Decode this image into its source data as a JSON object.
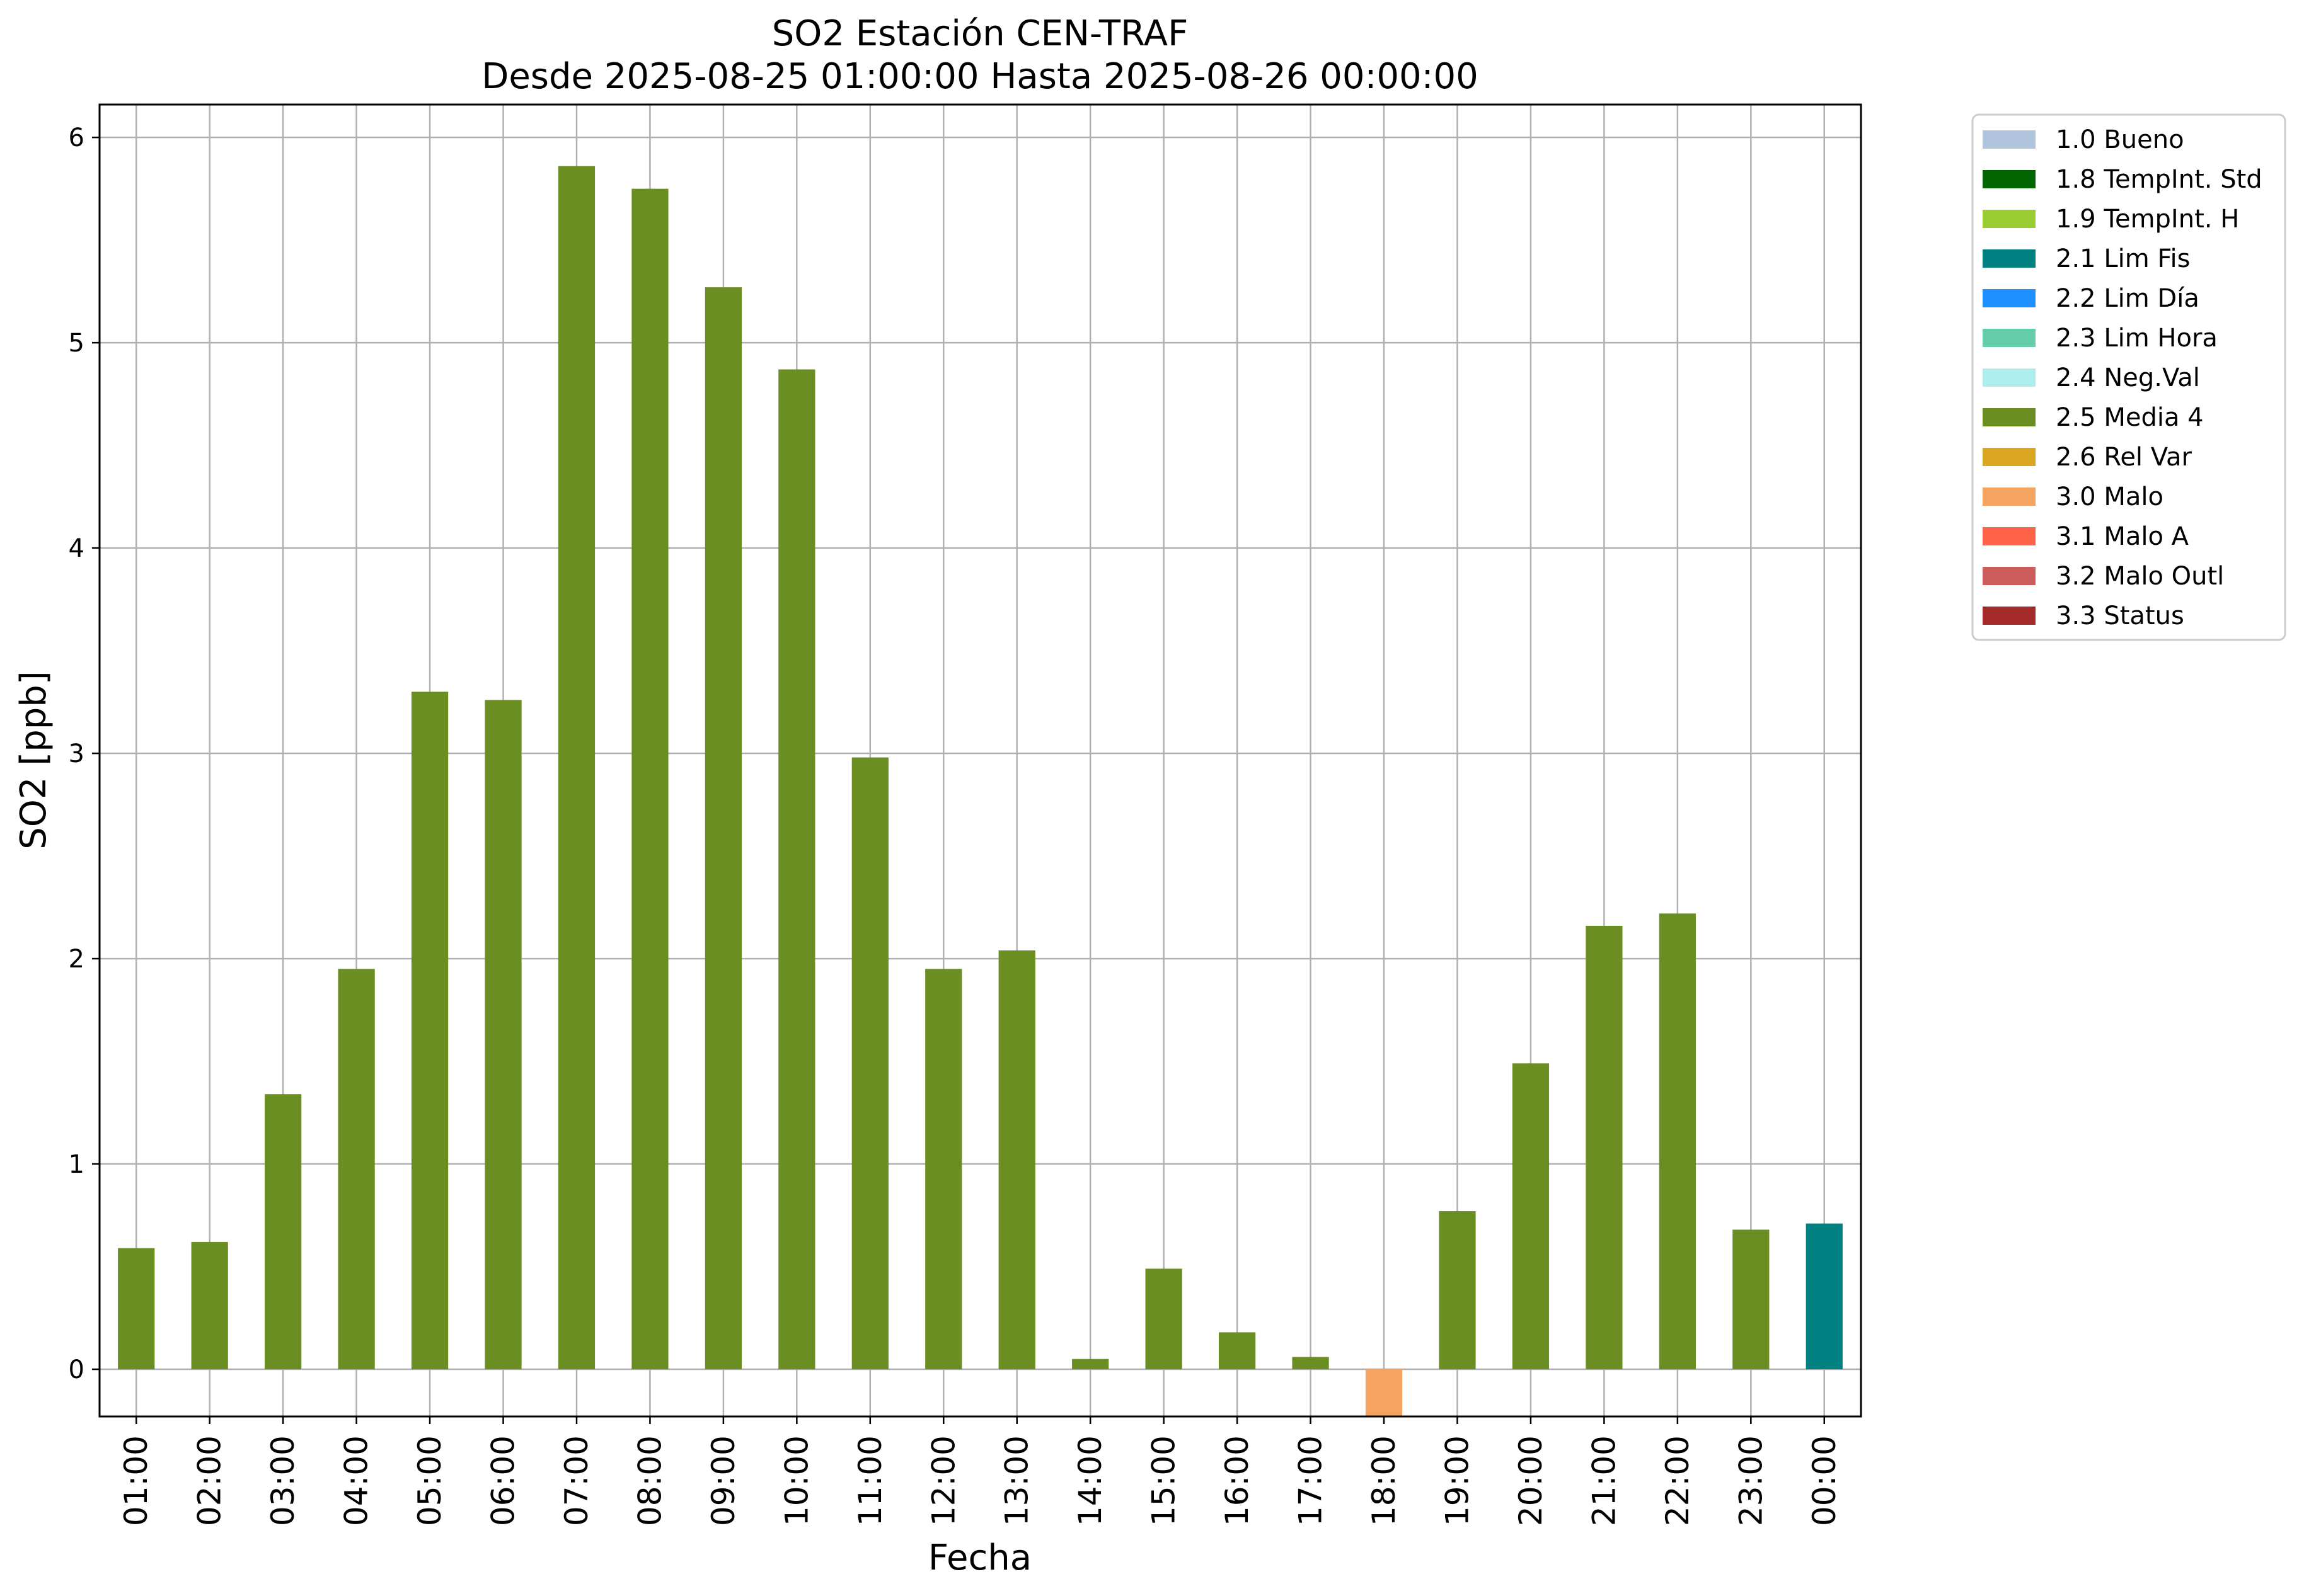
{
  "chart_data": {
    "type": "bar",
    "title": "SO2 Estación CEN-TRAF",
    "subtitle": "Desde 2025-08-25 01:00:00 Hasta 2025-08-26 00:00:00",
    "xlabel": "Fecha",
    "ylabel": "SO2 [ppb]",
    "ylim": [
      -0.23,
      6.16
    ],
    "yticks": [
      "0",
      "1",
      "2",
      "3",
      "4",
      "5",
      "6"
    ],
    "grid": true,
    "legend_position": "outside-top-right",
    "categories": [
      "01:00",
      "02:00",
      "03:00",
      "04:00",
      "05:00",
      "06:00",
      "07:00",
      "08:00",
      "09:00",
      "10:00",
      "11:00",
      "12:00",
      "13:00",
      "14:00",
      "15:00",
      "16:00",
      "17:00",
      "18:00",
      "19:00",
      "20:00",
      "21:00",
      "22:00",
      "23:00",
      "00:00"
    ],
    "values": [
      0.59,
      0.62,
      1.34,
      1.95,
      3.3,
      3.26,
      5.86,
      5.75,
      5.27,
      4.87,
      2.98,
      1.95,
      2.04,
      0.05,
      0.49,
      0.18,
      0.06,
      -0.25,
      0.77,
      1.49,
      2.16,
      2.22,
      0.68,
      0.71
    ],
    "flags": [
      "2.5 Media 4",
      "2.5 Media 4",
      "2.5 Media 4",
      "2.5 Media 4",
      "2.5 Media 4",
      "2.5 Media 4",
      "2.5 Media 4",
      "2.5 Media 4",
      "2.5 Media 4",
      "2.5 Media 4",
      "2.5 Media 4",
      "2.5 Media 4",
      "2.5 Media 4",
      "2.5 Media 4",
      "2.5 Media 4",
      "2.5 Media 4",
      "2.5 Media 4",
      "3.0 Malo",
      "2.5 Media 4",
      "2.5 Media 4",
      "2.5 Media 4",
      "2.5 Media 4",
      "2.5 Media 4",
      "2.1 Lim Fis"
    ],
    "legend": [
      {
        "label": "1.0 Bueno",
        "color": "#b0c4de"
      },
      {
        "label": "1.8 TempInt. Std",
        "color": "#006400"
      },
      {
        "label": "1.9 TempInt. H",
        "color": "#9acd32"
      },
      {
        "label": "2.1 Lim Fis",
        "color": "#008080"
      },
      {
        "label": "2.2 Lim Día",
        "color": "#1e90ff"
      },
      {
        "label": "2.3 Lim Hora",
        "color": "#66cdaa"
      },
      {
        "label": "2.4 Neg.Val",
        "color": "#afeeee"
      },
      {
        "label": "2.5 Media 4",
        "color": "#6b8e23"
      },
      {
        "label": "2.6 Rel Var",
        "color": "#daa520"
      },
      {
        "label": "3.0 Malo",
        "color": "#f4a460"
      },
      {
        "label": "3.1 Malo A",
        "color": "#ff6347"
      },
      {
        "label": "3.2 Malo Outl",
        "color": "#cd5c5c"
      },
      {
        "label": "3.3 Status",
        "color": "#a52a2a"
      }
    ]
  }
}
